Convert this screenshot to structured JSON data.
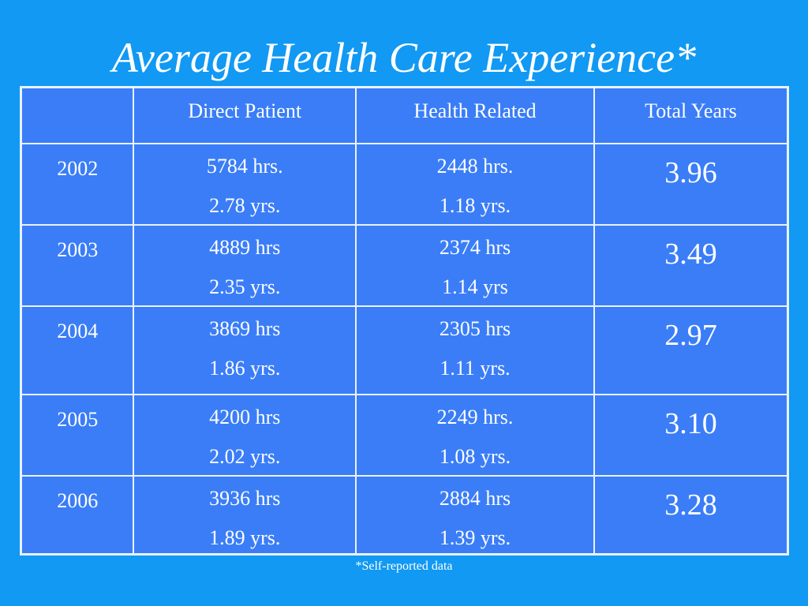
{
  "slide": {
    "title": "Average Health Care Experience*",
    "footnote": "*Self-reported data",
    "background_color": "#1199f3",
    "table_color": "#3a7df7"
  },
  "table": {
    "headers": [
      "",
      "Direct Patient",
      "Health Related",
      "Total Years"
    ],
    "rows": [
      {
        "year": "2002",
        "direct_hours": "5784 hrs.",
        "direct_years": "2.78 yrs.",
        "health_hours": "2448 hrs.",
        "health_years": "1.18 yrs.",
        "total": "3.96"
      },
      {
        "year": "2003",
        "direct_hours": "4889 hrs",
        "direct_years": "2.35 yrs.",
        "health_hours": "2374 hrs",
        "health_years": "1.14 yrs",
        "total": "3.49"
      },
      {
        "year": "2004",
        "direct_hours": "3869 hrs",
        "direct_years": "1.86 yrs.",
        "health_hours": "2305 hrs",
        "health_years": "1.11 yrs.",
        "total": "2.97"
      },
      {
        "year": "2005",
        "direct_hours": "4200 hrs",
        "direct_years": "2.02 yrs.",
        "health_hours": "2249 hrs.",
        "health_years": "1.08 yrs.",
        "total": "3.10"
      },
      {
        "year": "2006",
        "direct_hours": "3936 hrs",
        "direct_years": "1.89 yrs.",
        "health_hours": "2884 hrs",
        "health_years": "1.39 yrs.",
        "total": "3.28"
      }
    ]
  }
}
